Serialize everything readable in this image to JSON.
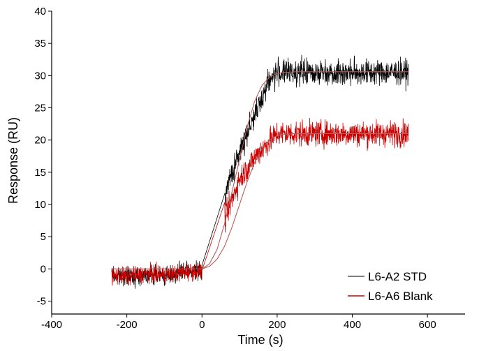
{
  "chart_data": {
    "type": "line",
    "title": "",
    "xlabel": "Time (s)",
    "ylabel": "Response (RU)",
    "xlim": [
      -400,
      700
    ],
    "ylim": [
      -7,
      40
    ],
    "xticks": [
      -400,
      -200,
      0,
      200,
      400,
      600
    ],
    "yticks": [
      -5,
      0,
      5,
      10,
      15,
      20,
      25,
      30,
      35,
      40
    ],
    "legend_position": "bottom-right",
    "grid": false,
    "series": [
      {
        "name": "L6-A2 STD",
        "color": "#000000",
        "style": "noisy data",
        "x": [
          -240,
          -200,
          -150,
          -100,
          -50,
          0,
          25,
          50,
          75,
          100,
          125,
          150,
          175,
          200,
          250,
          300,
          350,
          400,
          450,
          500,
          550
        ],
        "y": [
          -1,
          -1.2,
          -0.8,
          -1,
          -0.5,
          -0.3,
          5,
          10,
          14,
          18,
          22,
          25,
          29,
          30.5,
          30.5,
          30.5,
          30.5,
          30.5,
          30.5,
          30.5,
          30.5
        ]
      },
      {
        "name": "L6-A6 Blank",
        "color": "#cc0000",
        "style": "noisy data",
        "x": [
          -240,
          -200,
          -150,
          -100,
          -50,
          0,
          25,
          50,
          75,
          100,
          125,
          150,
          175,
          200,
          250,
          300,
          350,
          400,
          450,
          500,
          550
        ],
        "y": [
          -1,
          -1.2,
          -0.8,
          -1,
          -0.5,
          -0.3,
          3,
          6,
          10,
          14,
          16,
          18,
          19.5,
          21,
          21,
          21,
          21,
          21,
          21,
          21,
          21
        ]
      },
      {
        "name": "Fit (L6-A2 STD)",
        "color": "#b85c5c",
        "style": "fit",
        "x": [
          -240,
          0,
          20,
          40,
          60,
          80,
          100,
          120,
          140,
          160,
          180,
          200,
          220,
          250,
          300,
          400,
          550
        ],
        "y": [
          0,
          0,
          0.8,
          3,
          7,
          12,
          17,
          22,
          26,
          28.5,
          29.8,
          30.3,
          30.5,
          30.6,
          30.6,
          30.6,
          30.6
        ]
      },
      {
        "name": "Fit (L6-A6 Blank)",
        "color": "#b85c5c",
        "style": "fit",
        "x": [
          -240,
          0,
          20,
          40,
          60,
          80,
          100,
          120,
          140,
          160,
          180,
          200,
          220,
          250,
          300,
          400,
          550
        ],
        "y": [
          0,
          0,
          0.4,
          1.5,
          3.5,
          6.5,
          10,
          13.5,
          16.5,
          18.8,
          20,
          20.7,
          20.9,
          21,
          21,
          21,
          21
        ]
      }
    ],
    "legend": [
      {
        "label": "L6-A2 STD",
        "color": "#555555"
      },
      {
        "label": "L6-A6 Blank",
        "color": "#cc0000"
      }
    ]
  }
}
